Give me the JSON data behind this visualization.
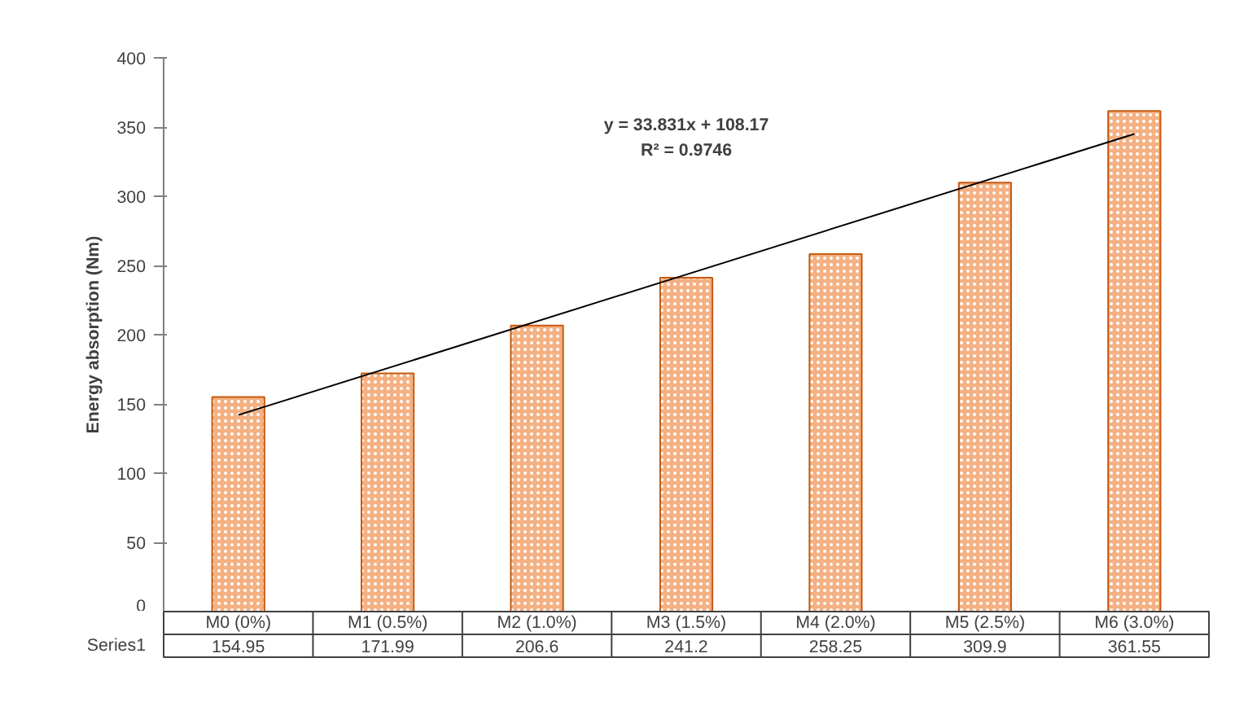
{
  "chart_data": {
    "type": "bar",
    "ylabel": "Energy absorption (Nm)",
    "categories": [
      "M0 (0%)",
      "M1 (0.5%)",
      "M2 (1.0%)",
      "M3 (1.5%)",
      "M4 (2.0%)",
      "M5 (2.5%)",
      "M6 (3.0%)"
    ],
    "series": [
      {
        "name": "Series1",
        "color": "#f4b183",
        "values": [
          154.95,
          171.99,
          206.6,
          241.2,
          258.25,
          309.9,
          361.55
        ],
        "value_labels": [
          "154.95",
          "171.99",
          "206.6",
          "241.2",
          "258.25",
          "309.9",
          "361.55"
        ]
      },
      {
        "type": "line",
        "color": "#000000",
        "x": [
          "M0 (0%)",
          "M6 (3.0%)"
        ],
        "values": [
          142.0,
          345.0
        ]
      }
    ],
    "annotations": [
      "y = 33.831x + 108.17",
      "R² = 0.9746"
    ],
    "ylim": [
      0,
      400
    ],
    "yticks": [
      0,
      50,
      100,
      150,
      200,
      250,
      300,
      350,
      400
    ],
    "grid": false
  }
}
